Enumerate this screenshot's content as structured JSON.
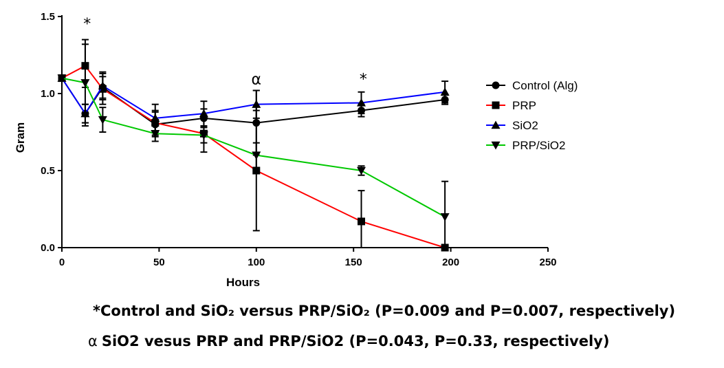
{
  "chart_data": {
    "type": "line",
    "xlabel": "Hours",
    "ylabel": "Gram",
    "xlim": [
      0,
      250
    ],
    "ylim": [
      0,
      1.5
    ],
    "xticks": [
      "0",
      "50",
      "100",
      "150",
      "200",
      "250"
    ],
    "yticks": [
      "0.0",
      "0.5",
      "1.0",
      "1.5"
    ],
    "legend_position": "right",
    "series": [
      {
        "name": "Control (Alg)",
        "color": "#000000",
        "marker": "circle",
        "x": [
          0,
          12,
          21,
          48,
          73,
          100,
          154,
          197
        ],
        "y": [
          1.1,
          0.87,
          1.04,
          0.8,
          0.84,
          0.81,
          0.89,
          0.96
        ],
        "err": [
          0.0,
          0.06,
          0.07,
          0.08,
          0.06,
          0.21,
          0.04,
          0.03
        ]
      },
      {
        "name": "PRP",
        "color": "#ff0000",
        "marker": "square",
        "x": [
          0,
          12,
          21,
          48,
          73,
          100,
          154,
          197
        ],
        "y": [
          1.1,
          1.18,
          1.03,
          0.81,
          0.74,
          0.5,
          0.17,
          0.0
        ],
        "err": [
          0.0,
          0.14,
          0.1,
          0.08,
          0.12,
          0.39,
          0.2,
          0.0
        ]
      },
      {
        "name": "SiO2",
        "color": "#0000ff",
        "marker": "triangle-up",
        "x": [
          0,
          12,
          21,
          48,
          73,
          100,
          154,
          197
        ],
        "y": [
          1.1,
          0.87,
          1.05,
          0.84,
          0.87,
          0.93,
          0.94,
          1.01
        ],
        "err": [
          0.0,
          0.06,
          0.09,
          0.09,
          0.08,
          0.09,
          0.07,
          0.07
        ]
      },
      {
        "name": "PRP/SiO2",
        "color": "#00c800",
        "marker": "triangle-down",
        "x": [
          0,
          12,
          21,
          48,
          73,
          100,
          154,
          197
        ],
        "y": [
          1.1,
          1.07,
          0.83,
          0.74,
          0.73,
          0.6,
          0.5,
          0.2
        ],
        "err": [
          0.0,
          0.28,
          0.08,
          0.05,
          0.05,
          0.08,
          0.03,
          0.23
        ]
      }
    ],
    "annotations": [
      {
        "text": "*",
        "x": 13,
        "y": 1.42
      },
      {
        "text": "α",
        "x": 100,
        "y": 1.06
      },
      {
        "text": "*",
        "x": 155,
        "y": 1.06
      }
    ]
  },
  "footnotes": {
    "line1": "*Control and SiO₂ versus PRP/SiO₂ (P=0.009 and P=0.007, respectively)",
    "line2_symbol": "α",
    "line2": "SiO2 vesus PRP and PRP/SiO2 (P=0.043, P=0.33, respectively)"
  }
}
